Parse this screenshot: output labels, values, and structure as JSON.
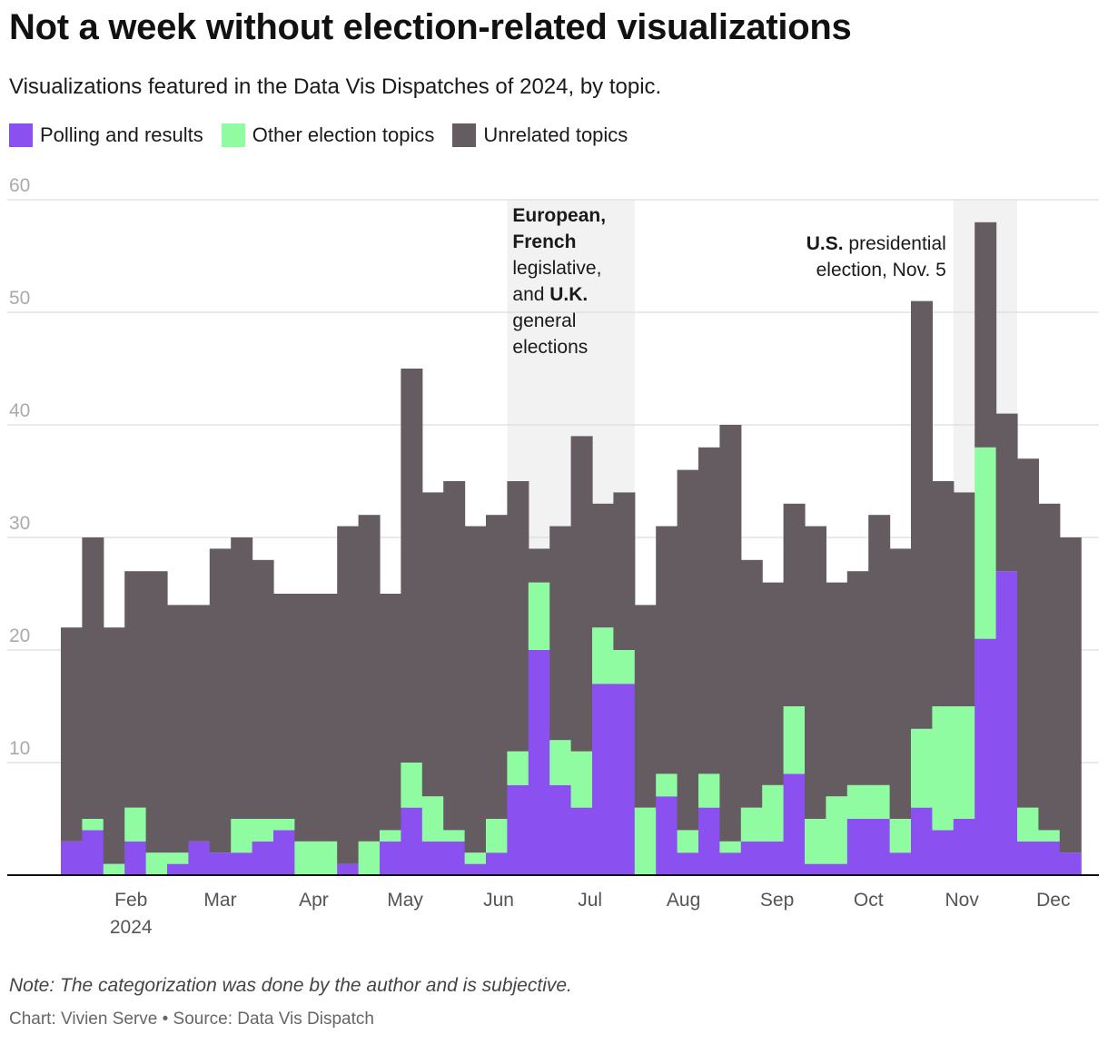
{
  "title": "Not a week without election-related visualizations",
  "subtitle": "Visualizations featured in the Data Vis Dispatches of 2024, by topic.",
  "note": "Note: The categorization was done by the author and is subjective.",
  "credit": "Chart: Vivien Serve • Source: Data Vis Dispatch",
  "colors": {
    "polling": "#8b50f0",
    "other": "#8ffca2",
    "unrelated": "#655c62",
    "highlight": "#f2f2f2",
    "grid": "#dddddd",
    "axis": "#111111"
  },
  "chart_data": {
    "type": "bar",
    "stacked": true,
    "title": "Not a week without election-related visualizations",
    "ylim": [
      0,
      60
    ],
    "yticks": [
      10,
      20,
      30,
      40,
      50,
      60
    ],
    "x_tick_labels": [
      {
        "label": "Feb",
        "sub": "2024",
        "week": 3.3
      },
      {
        "label": "Mar",
        "week": 7.5
      },
      {
        "label": "Apr",
        "week": 11.9
      },
      {
        "label": "May",
        "week": 16.2
      },
      {
        "label": "Jun",
        "week": 20.6
      },
      {
        "label": "Jul",
        "week": 24.9
      },
      {
        "label": "Aug",
        "week": 29.3
      },
      {
        "label": "Sep",
        "week": 33.7
      },
      {
        "label": "Oct",
        "week": 38.0
      },
      {
        "label": "Nov",
        "week": 42.4
      },
      {
        "label": "Dec",
        "week": 46.7
      }
    ],
    "legend": [
      {
        "key": "polling",
        "label": "Polling and results"
      },
      {
        "key": "other",
        "label": "Other election topics"
      },
      {
        "key": "unrelated",
        "label": "Unrelated topics"
      }
    ],
    "series": [
      {
        "name": "Polling and results",
        "key": "polling",
        "values": [
          3,
          4,
          0,
          3,
          0,
          1,
          3,
          2,
          2,
          3,
          4,
          0,
          0,
          1,
          0,
          3,
          6,
          3,
          3,
          1,
          2,
          8,
          20,
          8,
          6,
          17,
          17,
          0,
          7,
          2,
          6,
          2,
          3,
          3,
          9,
          1,
          1,
          5,
          5,
          2,
          6,
          4,
          5,
          21,
          27,
          3,
          3,
          2
        ]
      },
      {
        "name": "Other election topics",
        "key": "other",
        "values": [
          0,
          1,
          1,
          3,
          2,
          1,
          0,
          0,
          3,
          2,
          1,
          3,
          3,
          0,
          3,
          1,
          4,
          4,
          1,
          1,
          3,
          3,
          6,
          4,
          5,
          5,
          3,
          6,
          2,
          2,
          3,
          1,
          3,
          5,
          6,
          4,
          6,
          3,
          3,
          3,
          7,
          11,
          10,
          17,
          0,
          3,
          1,
          0
        ]
      },
      {
        "name": "Unrelated topics",
        "key": "unrelated",
        "values": [
          19,
          25,
          21,
          21,
          25,
          22,
          21,
          27,
          25,
          23,
          20,
          22,
          22,
          30,
          29,
          21,
          35,
          27,
          31,
          29,
          27,
          24,
          3,
          19,
          28,
          11,
          14,
          18,
          22,
          32,
          29,
          37,
          22,
          18,
          18,
          26,
          19,
          19,
          24,
          24,
          38,
          20,
          19,
          20,
          14,
          31,
          29,
          28
        ]
      }
    ],
    "highlights": [
      {
        "start": 21,
        "end": 27,
        "parts": [
          {
            "text": "European,",
            "bold": true
          },
          {
            "text": "French",
            "bold": true
          },
          {
            "text": "legislative,",
            "bold": false
          },
          {
            "text": "and ",
            "bold": false
          },
          {
            "text": "U.K.",
            "bold": true
          },
          {
            "text": "general",
            "bold": false
          },
          {
            "text": "elections",
            "bold": false
          }
        ]
      },
      {
        "start": 42,
        "end": 45,
        "parts": [
          {
            "text": "U.S.",
            "bold": true
          },
          {
            "text": " presidential",
            "bold": false
          },
          {
            "text": "election, Nov. 5",
            "bold": false
          }
        ]
      }
    ]
  }
}
